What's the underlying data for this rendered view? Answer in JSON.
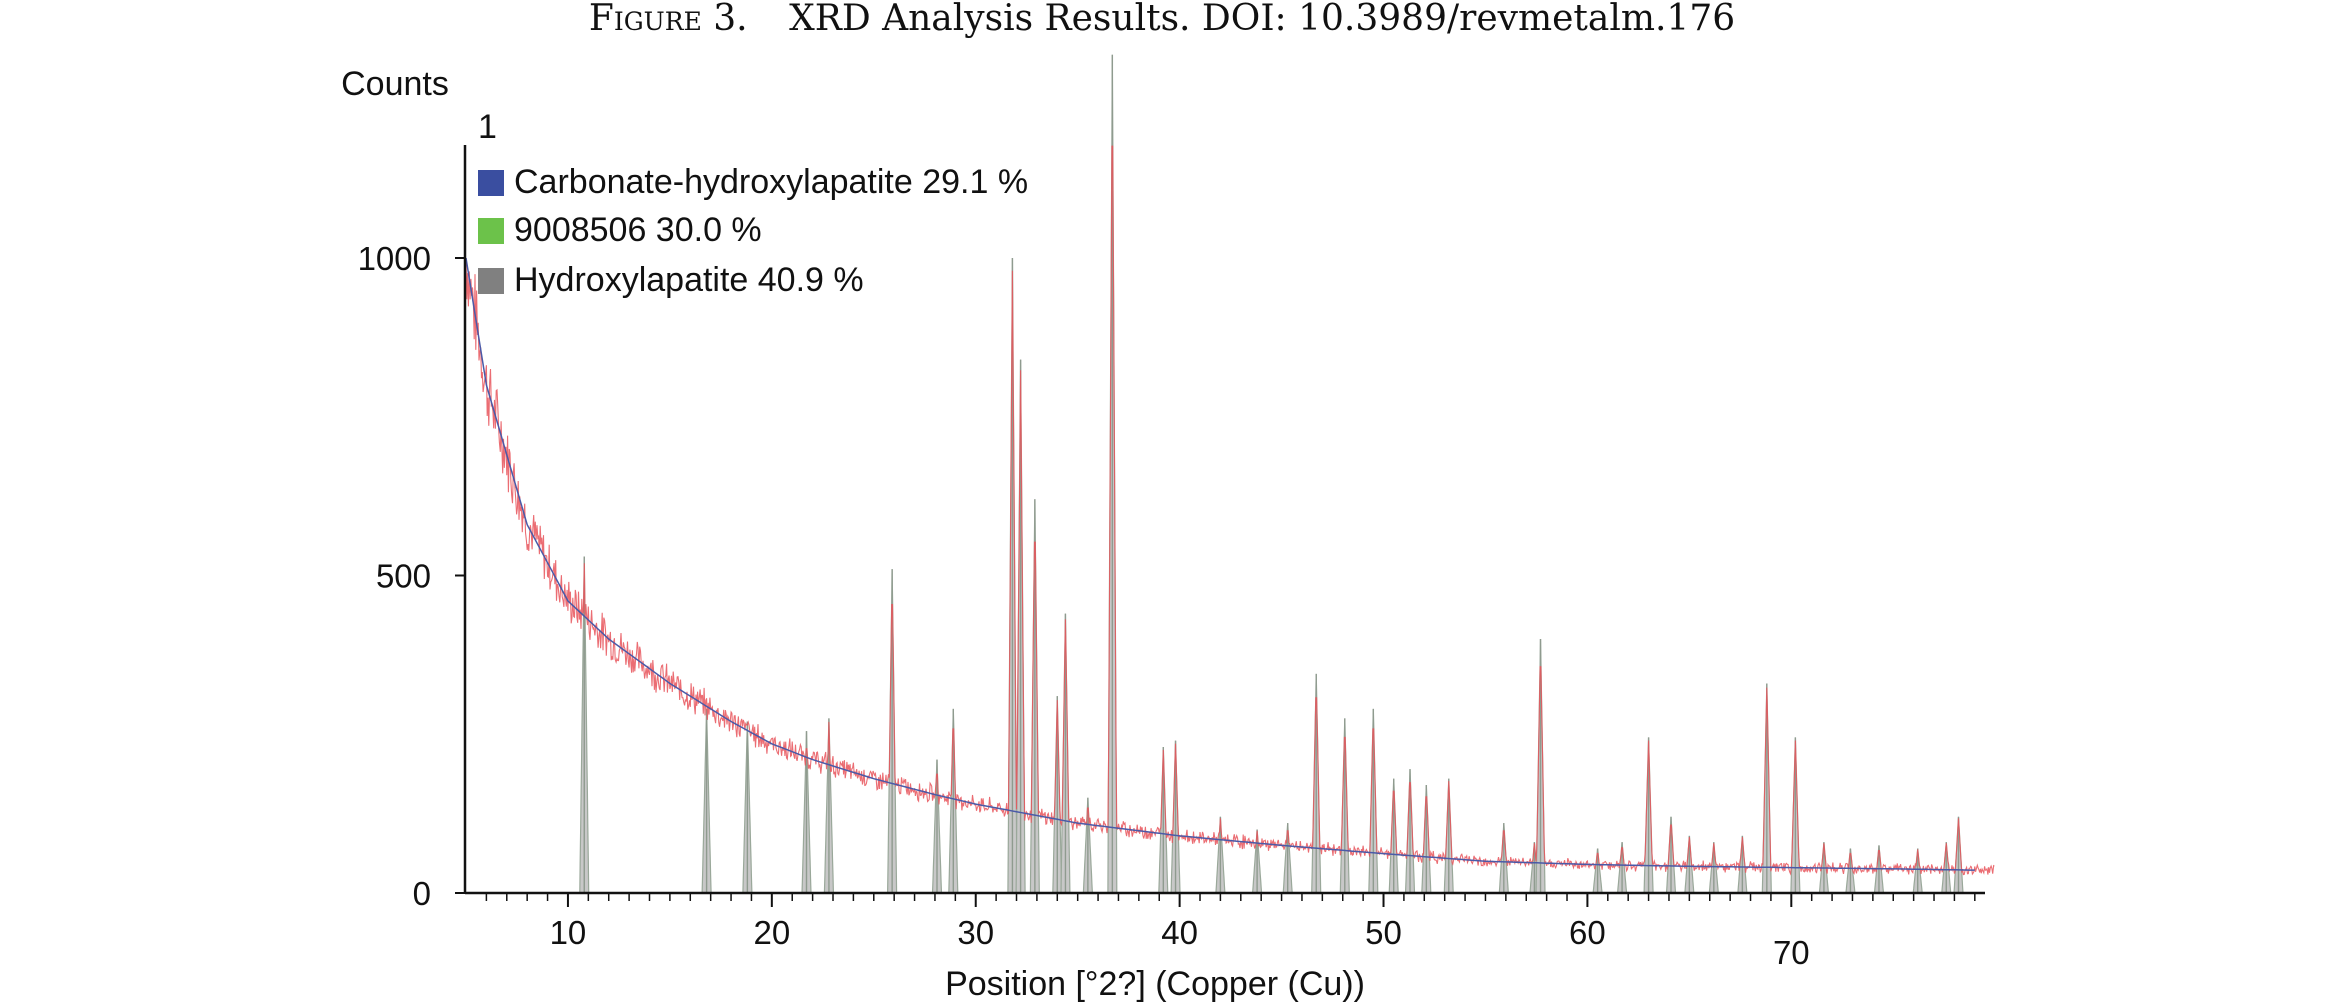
{
  "figure": {
    "caption_prefix": "Figure 3.",
    "caption_text": "XRD Analysis Results. DOI: 10.3989/revmetalm.176"
  },
  "chart_data": {
    "type": "line",
    "xlabel": "Position [°2?] (Copper (Cu))",
    "ylabel": "Counts",
    "panel_label": "1",
    "xlim": [
      5,
      79.5
    ],
    "ylim": [
      0,
      1180
    ],
    "x_ticks": [
      10,
      20,
      30,
      40,
      50,
      60,
      70
    ],
    "x_tick_labels": [
      "10",
      "20",
      "30",
      "40",
      "50",
      "60",
      "70"
    ],
    "y_ticks": [
      0,
      500,
      1000
    ],
    "y_tick_labels": [
      "0",
      "500",
      "1000"
    ],
    "grid": false,
    "legend_position": "top-left",
    "legend": [
      {
        "label": "Carbonate-hydroxylapatite 29.1 %",
        "color": "#3a4ea0"
      },
      {
        "label": "9008506 30.0 %",
        "color": "#6cc24a"
      },
      {
        "label": "Hydroxylapatite 40.9 %",
        "color": "#808080"
      }
    ],
    "colors": {
      "observed": "#e8535a",
      "calculated": "#4a5aa8",
      "peak_fill": "#c8c8c8",
      "peak_edge": "#9aa89a"
    },
    "background": {
      "x": [
        5,
        6,
        8,
        10,
        12,
        15,
        18,
        20,
        22,
        25,
        28,
        30,
        35,
        40,
        45,
        50,
        55,
        60,
        65,
        70,
        75,
        79
      ],
      "y": [
        1000,
        800,
        580,
        460,
        400,
        330,
        270,
        235,
        210,
        180,
        155,
        140,
        110,
        90,
        75,
        62,
        50,
        45,
        42,
        40,
        38,
        36
      ]
    },
    "peaks": [
      {
        "x": 10.8,
        "y": 530
      },
      {
        "x": 16.8,
        "y": 290
      },
      {
        "x": 18.8,
        "y": 270
      },
      {
        "x": 21.7,
        "y": 255
      },
      {
        "x": 22.8,
        "y": 275
      },
      {
        "x": 25.9,
        "y": 510
      },
      {
        "x": 28.1,
        "y": 210
      },
      {
        "x": 28.9,
        "y": 290
      },
      {
        "x": 31.8,
        "y": 1000
      },
      {
        "x": 32.2,
        "y": 840
      },
      {
        "x": 32.9,
        "y": 620
      },
      {
        "x": 34.0,
        "y": 310
      },
      {
        "x": 34.4,
        "y": 440
      },
      {
        "x": 35.5,
        "y": 150
      },
      {
        "x": 36.7,
        "y": 1320
      },
      {
        "x": 39.2,
        "y": 230
      },
      {
        "x": 39.8,
        "y": 240
      },
      {
        "x": 42.0,
        "y": 120
      },
      {
        "x": 43.8,
        "y": 100
      },
      {
        "x": 45.3,
        "y": 110
      },
      {
        "x": 46.7,
        "y": 345
      },
      {
        "x": 48.1,
        "y": 275
      },
      {
        "x": 49.5,
        "y": 290
      },
      {
        "x": 50.5,
        "y": 180
      },
      {
        "x": 51.3,
        "y": 195
      },
      {
        "x": 52.1,
        "y": 170
      },
      {
        "x": 53.2,
        "y": 180
      },
      {
        "x": 55.9,
        "y": 110
      },
      {
        "x": 57.4,
        "y": 80
      },
      {
        "x": 57.7,
        "y": 400
      },
      {
        "x": 60.5,
        "y": 70
      },
      {
        "x": 61.7,
        "y": 80
      },
      {
        "x": 63.0,
        "y": 245
      },
      {
        "x": 64.1,
        "y": 120
      },
      {
        "x": 65.0,
        "y": 90
      },
      {
        "x": 66.2,
        "y": 80
      },
      {
        "x": 67.6,
        "y": 90
      },
      {
        "x": 68.8,
        "y": 330
      },
      {
        "x": 70.2,
        "y": 245
      },
      {
        "x": 71.6,
        "y": 80
      },
      {
        "x": 72.9,
        "y": 70
      },
      {
        "x": 74.3,
        "y": 75
      },
      {
        "x": 76.2,
        "y": 70
      },
      {
        "x": 77.6,
        "y": 80
      },
      {
        "x": 78.2,
        "y": 120
      }
    ]
  }
}
